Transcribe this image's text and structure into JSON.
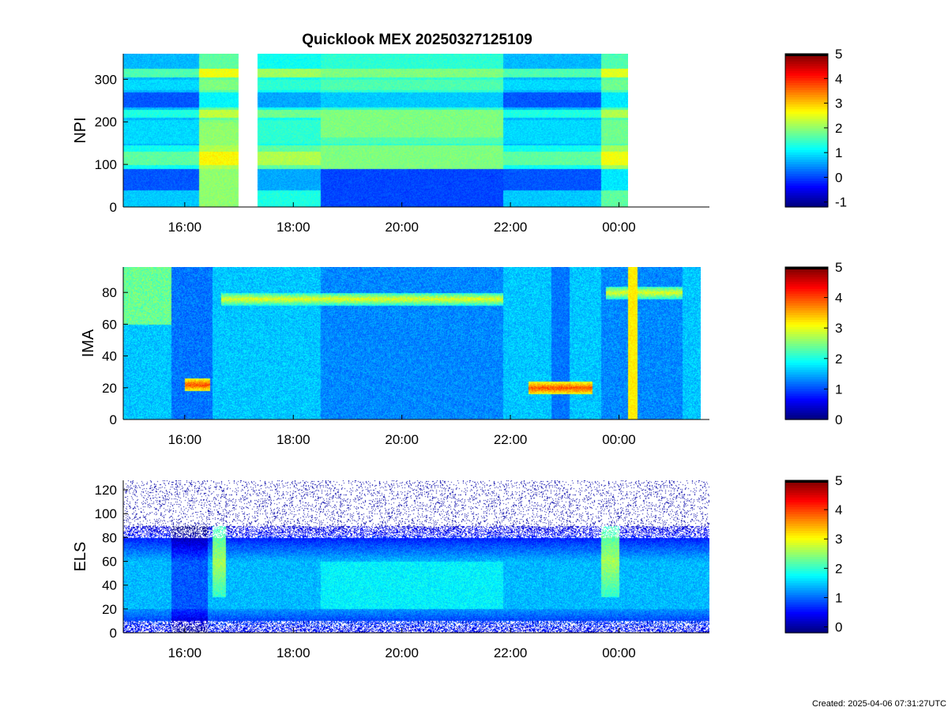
{
  "title": "Quicklook MEX 20250327125109",
  "created": "Created: 2025-04-06 07:31:27UTC",
  "time_axis": {
    "ticks": [
      "16:00",
      "18:00",
      "20:00",
      "22:00",
      "00:00"
    ]
  },
  "chart_data": [
    {
      "type": "heatmap",
      "instrument": "NPI",
      "ylabel": "NPI",
      "x_range": [
        "14:52",
        "25:40"
      ],
      "data_end": "00:10",
      "ylim": [
        0,
        360
      ],
      "yticks": [
        0,
        100,
        200,
        300
      ],
      "colorbar": {
        "range": [
          -1.2,
          5
        ],
        "ticks": [
          -1,
          0,
          1,
          2,
          3,
          4,
          5
        ]
      },
      "data_gap": [
        "16:59",
        "17:20"
      ],
      "intervals": [
        {
          "start": "14:52",
          "end": "16:15",
          "level": 0.7
        },
        {
          "start": "16:15",
          "end": "16:59",
          "level": 1.7
        },
        {
          "start": "17:20",
          "end": "18:30",
          "level": 1.2
        },
        {
          "start": "18:30",
          "end": "21:52",
          "level": 1.4
        },
        {
          "start": "21:52",
          "end": "23:40",
          "level": 0.7
        },
        {
          "start": "23:40",
          "end": "00:10",
          "level": 1.6
        }
      ]
    },
    {
      "type": "heatmap",
      "instrument": "IMA",
      "ylabel": "IMA",
      "x_range": [
        "14:52",
        "25:40"
      ],
      "data_end": "01:30",
      "ylim": [
        0,
        96
      ],
      "yticks": [
        0,
        20,
        40,
        60,
        80
      ],
      "colorbar": {
        "range": [
          0,
          5
        ],
        "ticks": [
          0,
          1,
          2,
          3,
          4,
          5
        ]
      },
      "bright_bands": [
        {
          "start": "16:00",
          "end": "16:28",
          "y": 22,
          "level": 4.0
        },
        {
          "start": "16:40",
          "end": "21:52",
          "y": 76,
          "level": 3.0
        },
        {
          "start": "22:20",
          "end": "23:30",
          "y": 20,
          "level": 4.0
        },
        {
          "start": "23:45",
          "end": "01:10",
          "y": 80,
          "level": 3.0
        }
      ],
      "vertical_band": {
        "time": "00:15",
        "level": 3.2
      }
    },
    {
      "type": "heatmap",
      "instrument": "ELS",
      "ylabel": "ELS",
      "x_range": [
        "14:52",
        "25:40"
      ],
      "data_end": "01:40",
      "ylim": [
        0,
        128
      ],
      "yticks": [
        0,
        20,
        40,
        60,
        80,
        100,
        120
      ],
      "colorbar": {
        "range": [
          -0.2,
          5
        ],
        "ticks": [
          0,
          1,
          2,
          3,
          4,
          5
        ]
      },
      "core_band": [
        20,
        60
      ],
      "bright_bursts": [
        {
          "start": "16:30",
          "end": "16:45",
          "level": 2.6
        },
        {
          "start": "23:40",
          "end": "00:00",
          "level": 2.6
        }
      ]
    }
  ]
}
